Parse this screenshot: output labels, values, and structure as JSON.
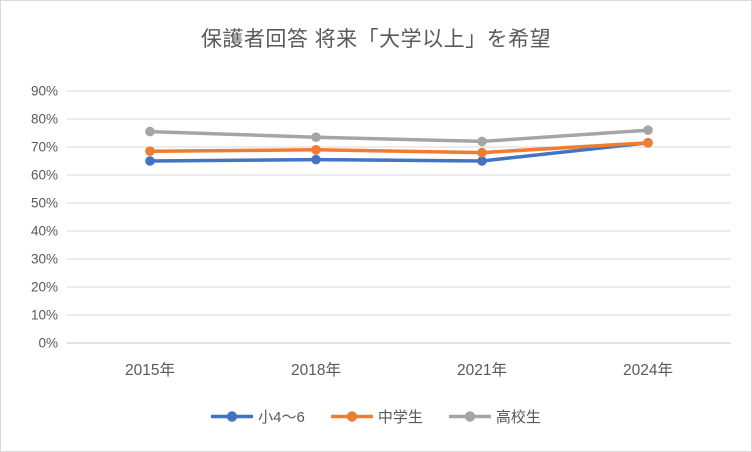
{
  "title": "保護者回答 将来「大学以上」を希望",
  "chart_data": {
    "type": "line",
    "categories": [
      "2015年",
      "2018年",
      "2021年",
      "2024年"
    ],
    "series": [
      {
        "name": "小4〜6",
        "color": "#4472C4",
        "values": [
          65,
          65.5,
          65,
          71.5
        ]
      },
      {
        "name": "中学生",
        "color": "#ED7D31",
        "values": [
          68.5,
          69,
          68,
          71.5
        ]
      },
      {
        "name": "高校生",
        "color": "#A5A5A5",
        "values": [
          75.5,
          73.5,
          72,
          76
        ]
      }
    ],
    "y_axis": {
      "min": 0,
      "max": 90,
      "step": 10,
      "tick_labels": [
        "0%",
        "10%",
        "20%",
        "30%",
        "40%",
        "50%",
        "60%",
        "70%",
        "80%",
        "90%"
      ]
    },
    "grid": true,
    "legend_position": "bottom",
    "marker": "circle"
  },
  "colors": {
    "background": "#FFFFFF",
    "border": "#D9D9D9",
    "gridline": "#D9D9D9",
    "axis_line": "#C6C6C6",
    "title_text": "#595959",
    "axis_text": "#595959",
    "legend_text": "#595959"
  }
}
